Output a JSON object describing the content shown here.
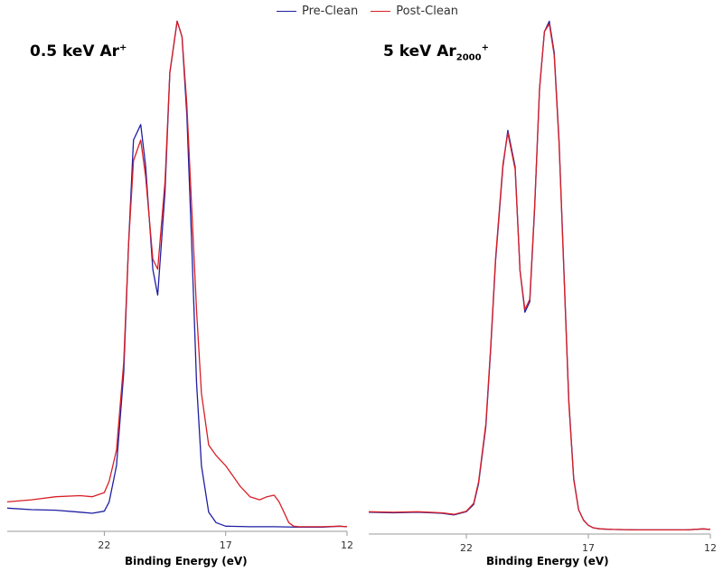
{
  "legend": {
    "series": [
      {
        "name": "Pre-Clean",
        "color": "#1f1fa3"
      },
      {
        "name": "Post-Clean",
        "color": "#d81f26"
      }
    ]
  },
  "chart_data": [
    {
      "type": "line",
      "title_main": "0.5 keV Ar",
      "title_sup": "+",
      "xlabel": "Binding Energy (eV)",
      "ylabel": "",
      "xlim": [
        26,
        12
      ],
      "ylim": [
        0,
        100
      ],
      "x_reversed": true,
      "xticks": [
        22,
        17,
        12
      ],
      "grid": false,
      "series": [
        {
          "name": "Pre-Clean",
          "color": "#1f1fa3",
          "x": [
            26,
            25,
            24,
            23,
            22.5,
            22,
            21.8,
            21.5,
            21.2,
            21,
            20.8,
            20.5,
            20.3,
            20,
            19.8,
            19.5,
            19.3,
            19,
            18.8,
            18.6,
            18.4,
            18.2,
            18,
            17.7,
            17.4,
            17,
            16,
            15,
            14,
            13,
            12.3,
            12
          ],
          "y": [
            3.8,
            3.5,
            3.4,
            3.0,
            2.8,
            3.2,
            5,
            12,
            30,
            55,
            75,
            78,
            70,
            50,
            45,
            65,
            88,
            98,
            95,
            80,
            55,
            28,
            12,
            3,
            1,
            0.3,
            0.2,
            0.2,
            0.1,
            0.1,
            0.3,
            0.2
          ]
        },
        {
          "name": "Post-Clean",
          "color": "#d81f26",
          "x": [
            26,
            25,
            24,
            23,
            22.5,
            22,
            21.8,
            21.5,
            21.2,
            21,
            20.8,
            20.5,
            20.3,
            20,
            19.8,
            19.5,
            19.3,
            19,
            18.8,
            18.6,
            18.4,
            18.2,
            18,
            17.7,
            17.4,
            17,
            16.7,
            16.4,
            16,
            15.6,
            15.3,
            15,
            14.8,
            14.6,
            14.4,
            14.2,
            14,
            13,
            12.3,
            12
          ],
          "y": [
            5,
            5.4,
            6,
            6.2,
            6,
            6.8,
            9,
            15,
            32,
            55,
            71,
            75,
            68,
            52,
            50,
            67,
            88,
            98,
            95,
            82,
            62,
            42,
            26,
            16,
            14,
            12,
            10,
            8,
            6,
            5.4,
            6,
            6.3,
            5,
            3,
            1,
            0.3,
            0.2,
            0.2,
            0.3,
            0.2
          ]
        }
      ]
    },
    {
      "type": "line",
      "title_main": "5 keV Ar",
      "title_sub": "2000",
      "title_sup": "+",
      "xlabel": "Binding Energy (eV)",
      "ylabel": "",
      "xlim": [
        26,
        12
      ],
      "ylim": [
        0,
        100
      ],
      "x_reversed": true,
      "xticks": [
        22,
        17,
        12
      ],
      "grid": false,
      "series": [
        {
          "name": "Pre-Clean",
          "color": "#1f1fa3",
          "x": [
            26,
            25,
            24,
            23,
            22.5,
            22,
            21.7,
            21.5,
            21.2,
            21,
            20.8,
            20.5,
            20.3,
            20,
            19.8,
            19.6,
            19.4,
            19.2,
            19,
            18.8,
            18.6,
            18.4,
            18.2,
            18,
            17.8,
            17.6,
            17.4,
            17.2,
            17,
            16.8,
            16.5,
            16,
            15,
            14,
            13,
            12.3,
            12
          ],
          "y": [
            3.5,
            3.4,
            3.5,
            3.3,
            3.0,
            3.6,
            5,
            9,
            20,
            35,
            52,
            70,
            77,
            70,
            50,
            42,
            44,
            62,
            85,
            96,
            98,
            92,
            75,
            50,
            25,
            10,
            4,
            2,
            1,
            0.5,
            0.3,
            0.2,
            0.1,
            0.1,
            0.1,
            0.3,
            0.2
          ]
        },
        {
          "name": "Post-Clean",
          "color": "#d81f26",
          "x": [
            26,
            25,
            24,
            23,
            22.5,
            22,
            21.7,
            21.5,
            21.2,
            21,
            20.8,
            20.5,
            20.3,
            20,
            19.8,
            19.6,
            19.4,
            19.2,
            19,
            18.8,
            18.6,
            18.4,
            18.2,
            18,
            17.8,
            17.6,
            17.4,
            17.2,
            17,
            16.8,
            16.5,
            16,
            15,
            14,
            13,
            12.3,
            12
          ],
          "y": [
            3.6,
            3.5,
            3.6,
            3.4,
            3.1,
            3.7,
            5.2,
            9.3,
            20.5,
            35.5,
            52.5,
            70.5,
            76.5,
            69.5,
            50,
            42.5,
            44.5,
            62.5,
            85,
            96,
            97.5,
            91.5,
            74.5,
            49.5,
            24.5,
            9.8,
            4,
            2,
            1,
            0.5,
            0.3,
            0.2,
            0.1,
            0.1,
            0.1,
            0.3,
            0.2
          ]
        }
      ]
    }
  ]
}
